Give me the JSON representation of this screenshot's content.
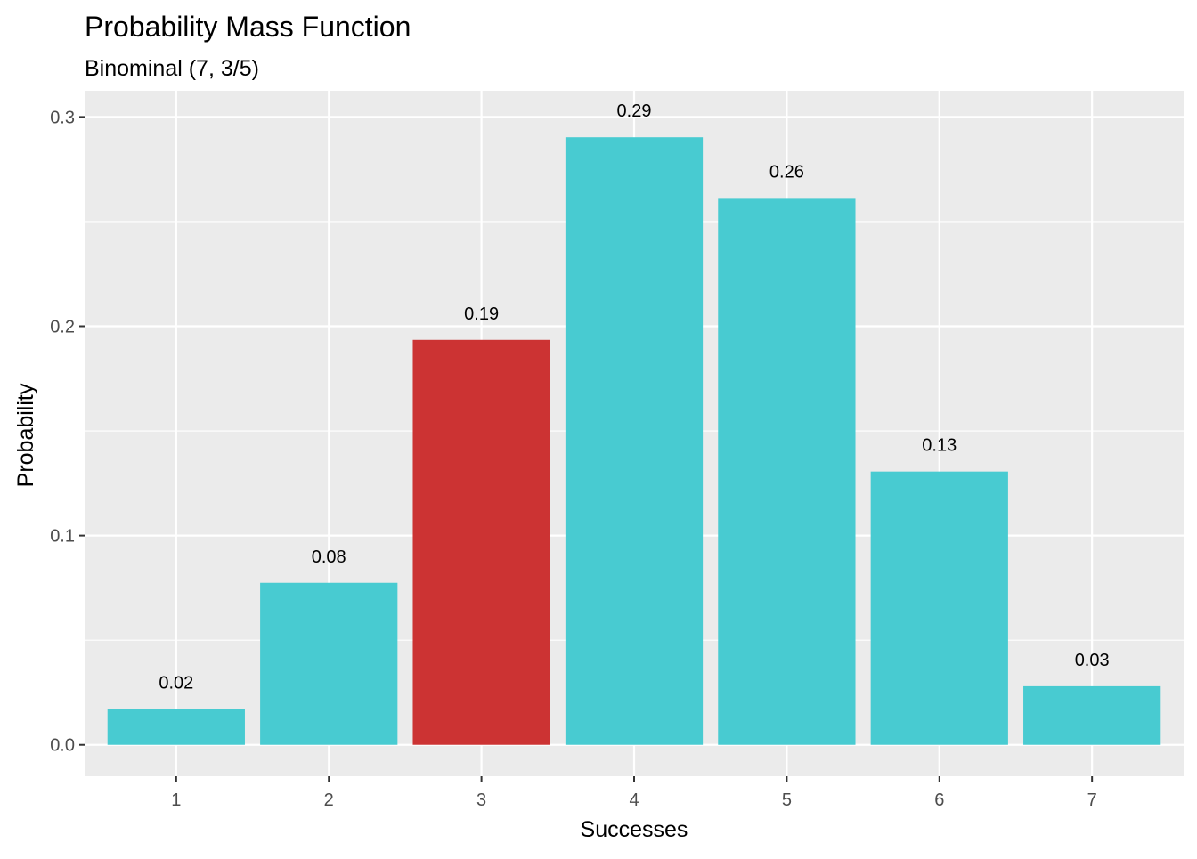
{
  "chart_data": {
    "type": "bar",
    "title": "Probability Mass Function",
    "subtitle": "Binominal (7, 3/5)",
    "xlabel": "Successes",
    "ylabel": "Probability",
    "categories": [
      "1",
      "2",
      "3",
      "4",
      "5",
      "6",
      "7"
    ],
    "values": [
      0.0172,
      0.0774,
      0.1935,
      0.2903,
      0.2613,
      0.1306,
      0.028
    ],
    "data_labels": [
      "0.02",
      "0.08",
      "0.19",
      "0.29",
      "0.26",
      "0.13",
      "0.03"
    ],
    "highlight_category": "3",
    "y_ticks": [
      0.0,
      0.1,
      0.2,
      0.3
    ],
    "y_tick_labels": [
      "0.0",
      "0.1",
      "0.2",
      "0.3"
    ],
    "ylim": [
      -0.015,
      0.3125
    ],
    "grid": true,
    "colors": {
      "bar": "#48CBD1",
      "highlight": "#CC3333",
      "panel_background": "#EBEBEB",
      "gridline": "#FFFFFF"
    }
  }
}
